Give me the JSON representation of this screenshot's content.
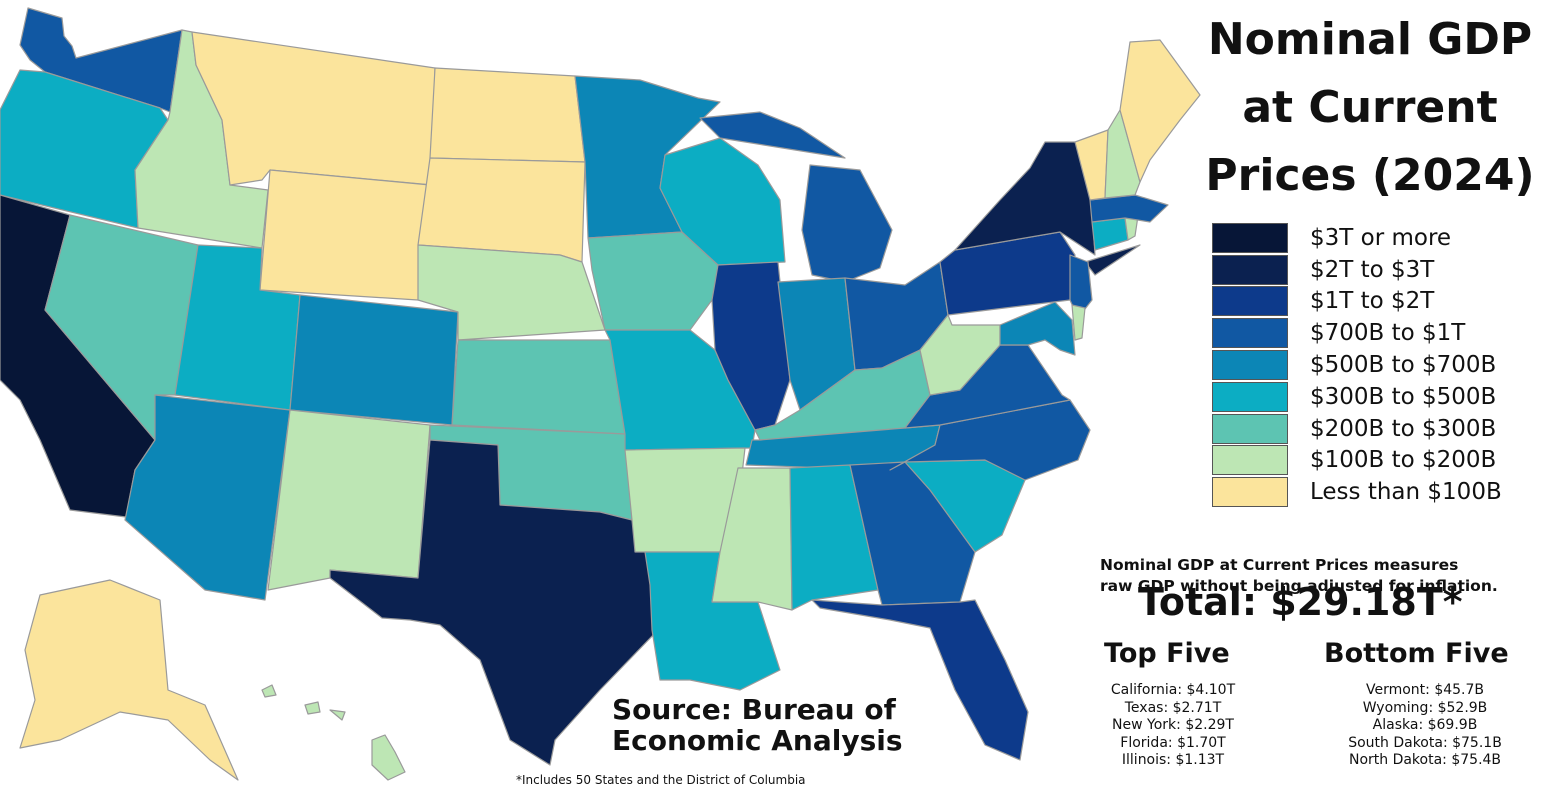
{
  "title_lines": [
    "Nominal GDP",
    "at Current",
    "Prices (2024)"
  ],
  "legend": [
    {
      "label": "$3T or more",
      "color": "#071637"
    },
    {
      "label": "$2T to $3T",
      "color": "#0b2150"
    },
    {
      "label": "$1T to $2T",
      "color": "#0d3a8b"
    },
    {
      "label": "$700B to $1T",
      "color": "#1158a3"
    },
    {
      "label": "$500B to $700B",
      "color": "#0c86b6"
    },
    {
      "label": "$300B to $500B",
      "color": "#0cadc3"
    },
    {
      "label": "$200B to $300B",
      "color": "#5dc4b2"
    },
    {
      "label": "$100B to $200B",
      "color": "#bde6b4"
    },
    {
      "label": "Less than $100B",
      "color": "#fbe49c"
    }
  ],
  "note_lines": [
    "Nominal GDP at Current Prices measures",
    "raw GDP without being adjusted for inflation."
  ],
  "total": "Total: $29.18T*",
  "top_five": {
    "heading": "Top Five",
    "items": [
      "California: $4.10T",
      "Texas: $2.71T",
      "New York: $2.29T",
      "Florida: $1.70T",
      "Illinois: $1.13T"
    ]
  },
  "bottom_five": {
    "heading": "Bottom Five",
    "items": [
      "Vermont: $45.7B",
      "Wyoming: $52.9B",
      "Alaska: $69.9B",
      "South Dakota: $75.1B",
      "North Dakota: $75.4B"
    ]
  },
  "source": [
    "Source: Bureau of",
    "Economic Analysis"
  ],
  "footnote": "*Includes 50 States and the District of Columbia",
  "states": {
    "CA": 0,
    "TX": 1,
    "NY": 1,
    "FL": 2,
    "IL": 2,
    "PA": 2,
    "WA": 3,
    "NJ": 3,
    "GA": 3,
    "NC": 3,
    "OH": 3,
    "MI": 3,
    "VA": 3,
    "MA": 3,
    "AZ": 4,
    "CO": 4,
    "MN": 4,
    "TN": 4,
    "IN": 4,
    "MD": 4,
    "OR": 5,
    "UT": 5,
    "WI": 5,
    "MO": 5,
    "SC": 5,
    "AL": 5,
    "LA": 5,
    "CT": 5,
    "NV": 6,
    "KS": 6,
    "IA": 6,
    "OK": 6,
    "KY": 6,
    "ID": 7,
    "NE": 7,
    "NM": 7,
    "AR": 7,
    "MS": 7,
    "WV": 7,
    "NH": 7,
    "DE": 7,
    "RI": 7,
    "HI": 7,
    "MT": 8,
    "ND": 8,
    "SD": 8,
    "WY": 8,
    "ME": 8,
    "VT": 8,
    "AK": 8
  }
}
